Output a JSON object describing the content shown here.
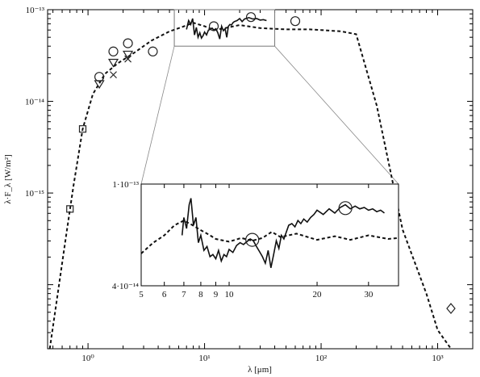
{
  "chart_data": [
    {
      "type": "scatter",
      "title": "",
      "xlabel": "λ [μm]",
      "ylabel": "λ·F_λ [W/m²]",
      "xscale": "log",
      "yscale": "log",
      "xlim": [
        0.45,
        2000
      ],
      "ylim": [
        2e-17,
        1e-13
      ],
      "x_ticks": [
        {
          "value": 1,
          "label": "10⁰"
        },
        {
          "value": 10,
          "label": "10¹"
        },
        {
          "value": 100,
          "label": "10²"
        },
        {
          "value": 1000,
          "label": "10³"
        }
      ],
      "y_ticks": [
        {
          "value": 1e-13,
          "label": "10⁻¹³"
        },
        {
          "value": 1e-14,
          "label": "10⁻¹⁴"
        },
        {
          "value": 1e-15,
          "label": "10⁻¹⁵"
        }
      ],
      "series": [
        {
          "style": "dashed line",
          "x": [
            0.47,
            0.55,
            0.65,
            0.75,
            0.9,
            1.1,
            1.4,
            1.8,
            2.5,
            3.5,
            5,
            6.5,
            8,
            10,
            12,
            15,
            20,
            30,
            50,
            80,
            100,
            150,
            200,
            300,
            500,
            800,
            1000,
            1300
          ],
          "y": [
            2e-17,
            8e-17,
            3.5e-16,
            1.2e-15,
            5e-15,
            1.2e-14,
            2e-14,
            2.6e-14,
            3.4e-14,
            4.6e-14,
            5.8e-14,
            6.5e-14,
            7.2e-14,
            6.6e-14,
            6e-14,
            6.3e-14,
            6.8e-14,
            6.3e-14,
            6.1e-14,
            6.1e-14,
            6e-14,
            5.8e-14,
            5.4e-14,
            9e-15,
            4e-16,
            8e-17,
            3.2e-17,
            2e-17
          ]
        },
        {
          "style": "solid line (spectrum)",
          "x": [
            7,
            7.3,
            7.6,
            7.9,
            8.2,
            8.5,
            8.8,
            9.1,
            9.4,
            9.7,
            10,
            10.4,
            10.8,
            11.2,
            11.6,
            12,
            12.5,
            13,
            13.5,
            14,
            14.5,
            15,
            15.5,
            16,
            16.5,
            17,
            17.5,
            18,
            19,
            20,
            21,
            22,
            24,
            26,
            28,
            30,
            32,
            34
          ],
          "y": [
            6.1e-14,
            7.6e-14,
            6.9e-14,
            8e-14,
            5.3e-14,
            6.4e-14,
            5e-14,
            5.6e-14,
            4.9e-14,
            5.2e-14,
            5.7e-14,
            5.3e-14,
            6e-14,
            6.1e-14,
            6.3e-14,
            6e-14,
            6.2e-14,
            5.6e-14,
            4.8e-14,
            6.6e-14,
            5.9e-14,
            6.2e-14,
            5e-14,
            6.6e-14,
            6.9e-14,
            6.8e-14,
            7.2e-14,
            7.4e-14,
            7.6e-14,
            8e-14,
            7.4e-14,
            7.9e-14,
            8.2e-14,
            7.9e-14,
            8e-14,
            7.7e-14,
            7.8e-14,
            7.6e-14
          ]
        },
        {
          "style": "square markers",
          "x": [
            0.7,
            0.9
          ],
          "y": [
            6.7e-16,
            5e-15
          ]
        },
        {
          "style": "down-triangle markers",
          "x": [
            1.25,
            1.65,
            2.2
          ],
          "y": [
            1.55e-14,
            2.65e-14,
            3.25e-14
          ]
        },
        {
          "style": "cross markers",
          "x": [
            1.65,
            2.2
          ],
          "y": [
            1.95e-14,
            2.9e-14
          ]
        },
        {
          "style": "circle markers",
          "x": [
            1.25,
            1.65,
            2.2,
            3.6,
            12,
            25,
            60
          ],
          "y": [
            1.85e-14,
            3.5e-14,
            4.3e-14,
            3.5e-14,
            6.6e-14,
            8.3e-14,
            7.5e-14
          ]
        },
        {
          "style": "diamond marker",
          "x": [
            1300
          ],
          "y": [
            5.5e-17
          ]
        }
      ],
      "zoom_region": {
        "xlim": [
          5.5,
          40
        ],
        "ylim": [
          4e-14,
          1e-13
        ]
      },
      "grid": false,
      "legend": "none"
    },
    {
      "type": "line",
      "title": "",
      "xscale": "log",
      "yscale": "log",
      "xlim": [
        5,
        38
      ],
      "ylim": [
        4e-14,
        1e-13
      ],
      "x_ticks": [
        {
          "value": 5,
          "label": "5"
        },
        {
          "value": 6,
          "label": "6"
        },
        {
          "value": 7,
          "label": "7"
        },
        {
          "value": 8,
          "label": "8"
        },
        {
          "value": 9,
          "label": "9"
        },
        {
          "value": 10,
          "label": "10"
        },
        {
          "value": 20,
          "label": "20"
        },
        {
          "value": 30,
          "label": "30"
        }
      ],
      "y_ticks": [
        {
          "value": 1e-13,
          "label": "1·10⁻¹³"
        },
        {
          "value": 4e-14,
          "label": "4·10⁻¹⁴"
        }
      ],
      "series": [
        {
          "style": "dashed line",
          "x": [
            5,
            5.5,
            6,
            6.5,
            7,
            7.5,
            8,
            8.5,
            9,
            10,
            11,
            12,
            13,
            14,
            15,
            17,
            20,
            23,
            26,
            30,
            35,
            38
          ],
          "y": [
            5.35e-14,
            5.9e-14,
            6.3e-14,
            6.9e-14,
            7.2e-14,
            6.9e-14,
            6.6e-14,
            6.35e-14,
            6.1e-14,
            5.95e-14,
            6.15e-14,
            6e-14,
            6.15e-14,
            6.5e-14,
            6.2e-14,
            6.4e-14,
            6.05e-14,
            6.25e-14,
            6.05e-14,
            6.3e-14,
            6.1e-14,
            6.15e-14
          ]
        },
        {
          "style": "solid line (spectrum)",
          "x": [
            6.9,
            7.0,
            7.15,
            7.3,
            7.4,
            7.55,
            7.7,
            7.85,
            8.0,
            8.2,
            8.4,
            8.6,
            8.8,
            9.0,
            9.2,
            9.4,
            9.6,
            9.8,
            10.0,
            10.3,
            10.6,
            10.9,
            11.2,
            11.5,
            11.8,
            12.1,
            12.4,
            12.7,
            13.0,
            13.3,
            13.6,
            13.9,
            14.2,
            14.5,
            14.8,
            15.1,
            15.4,
            15.7,
            16.0,
            16.4,
            16.8,
            17.2,
            17.6,
            18.0,
            18.5,
            19.0,
            19.5,
            20,
            21,
            22,
            23,
            24,
            25,
            26,
            27,
            28,
            29,
            30,
            31,
            32,
            33,
            34
          ],
          "y": [
            6.3e-14,
            7.4e-14,
            6.7e-14,
            8.3e-14,
            8.8e-14,
            6.9e-14,
            7.4e-14,
            5.9e-14,
            6.3e-14,
            5.5e-14,
            5.7e-14,
            5.2e-14,
            5.3e-14,
            5.1e-14,
            5.5e-14,
            5e-14,
            5.3e-14,
            5.2e-14,
            5.55e-14,
            5.4e-14,
            5.75e-14,
            5.9e-14,
            5.8e-14,
            5.95e-14,
            6.1e-14,
            6e-14,
            5.7e-14,
            5.45e-14,
            5.2e-14,
            4.9e-14,
            5.5e-14,
            4.7e-14,
            5.3e-14,
            6e-14,
            5.6e-14,
            6.3e-14,
            6.1e-14,
            6.5e-14,
            6.9e-14,
            7e-14,
            6.8e-14,
            7.2e-14,
            7e-14,
            7.3e-14,
            7.1e-14,
            7.4e-14,
            7.6e-14,
            7.9e-14,
            7.6e-14,
            8e-14,
            7.7e-14,
            8.1e-14,
            8.3e-14,
            8e-14,
            8.2e-14,
            8e-14,
            8.1e-14,
            7.9e-14,
            8e-14,
            7.8e-14,
            7.9e-14,
            7.7e-14
          ]
        },
        {
          "style": "circle markers",
          "x": [
            12,
            25
          ],
          "y": [
            6.05e-14,
            8.05e-14
          ]
        }
      ],
      "grid": false,
      "legend": "none"
    }
  ]
}
